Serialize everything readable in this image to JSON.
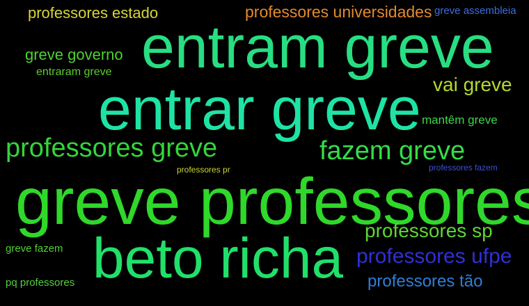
{
  "words": [
    {
      "text": "professores estado",
      "color": "#d8d43a"
    },
    {
      "text": "professores universidades",
      "color": "#e58a2c"
    },
    {
      "text": "greve assembleia",
      "color": "#3d6ee0"
    },
    {
      "text": "entram greve",
      "color": "#28de82"
    },
    {
      "text": "greve governo",
      "color": "#4fd132"
    },
    {
      "text": "entraram greve",
      "color": "#5acf2f"
    },
    {
      "text": "vai greve",
      "color": "#b5d92c"
    },
    {
      "text": "entrar greve",
      "color": "#1ee3a4"
    },
    {
      "text": "mantêm greve",
      "color": "#3ed64a"
    },
    {
      "text": "professores greve",
      "color": "#34d53a"
    },
    {
      "text": "fazem greve",
      "color": "#35dc49"
    },
    {
      "text": "professores fazem",
      "color": "#3a52d8"
    },
    {
      "text": "professores pr",
      "color": "#cfd52e"
    },
    {
      "text": "greve professores",
      "color": "#2fd82a"
    },
    {
      "text": "professores sp",
      "color": "#5ed636"
    },
    {
      "text": "beto richa",
      "color": "#21e06a"
    },
    {
      "text": "greve fazem",
      "color": "#4fd132"
    },
    {
      "text": "professores ufpe",
      "color": "#2f30d6"
    },
    {
      "text": "professores tão",
      "color": "#2f7ed8"
    },
    {
      "text": "pq professores",
      "color": "#54cf3a"
    }
  ]
}
